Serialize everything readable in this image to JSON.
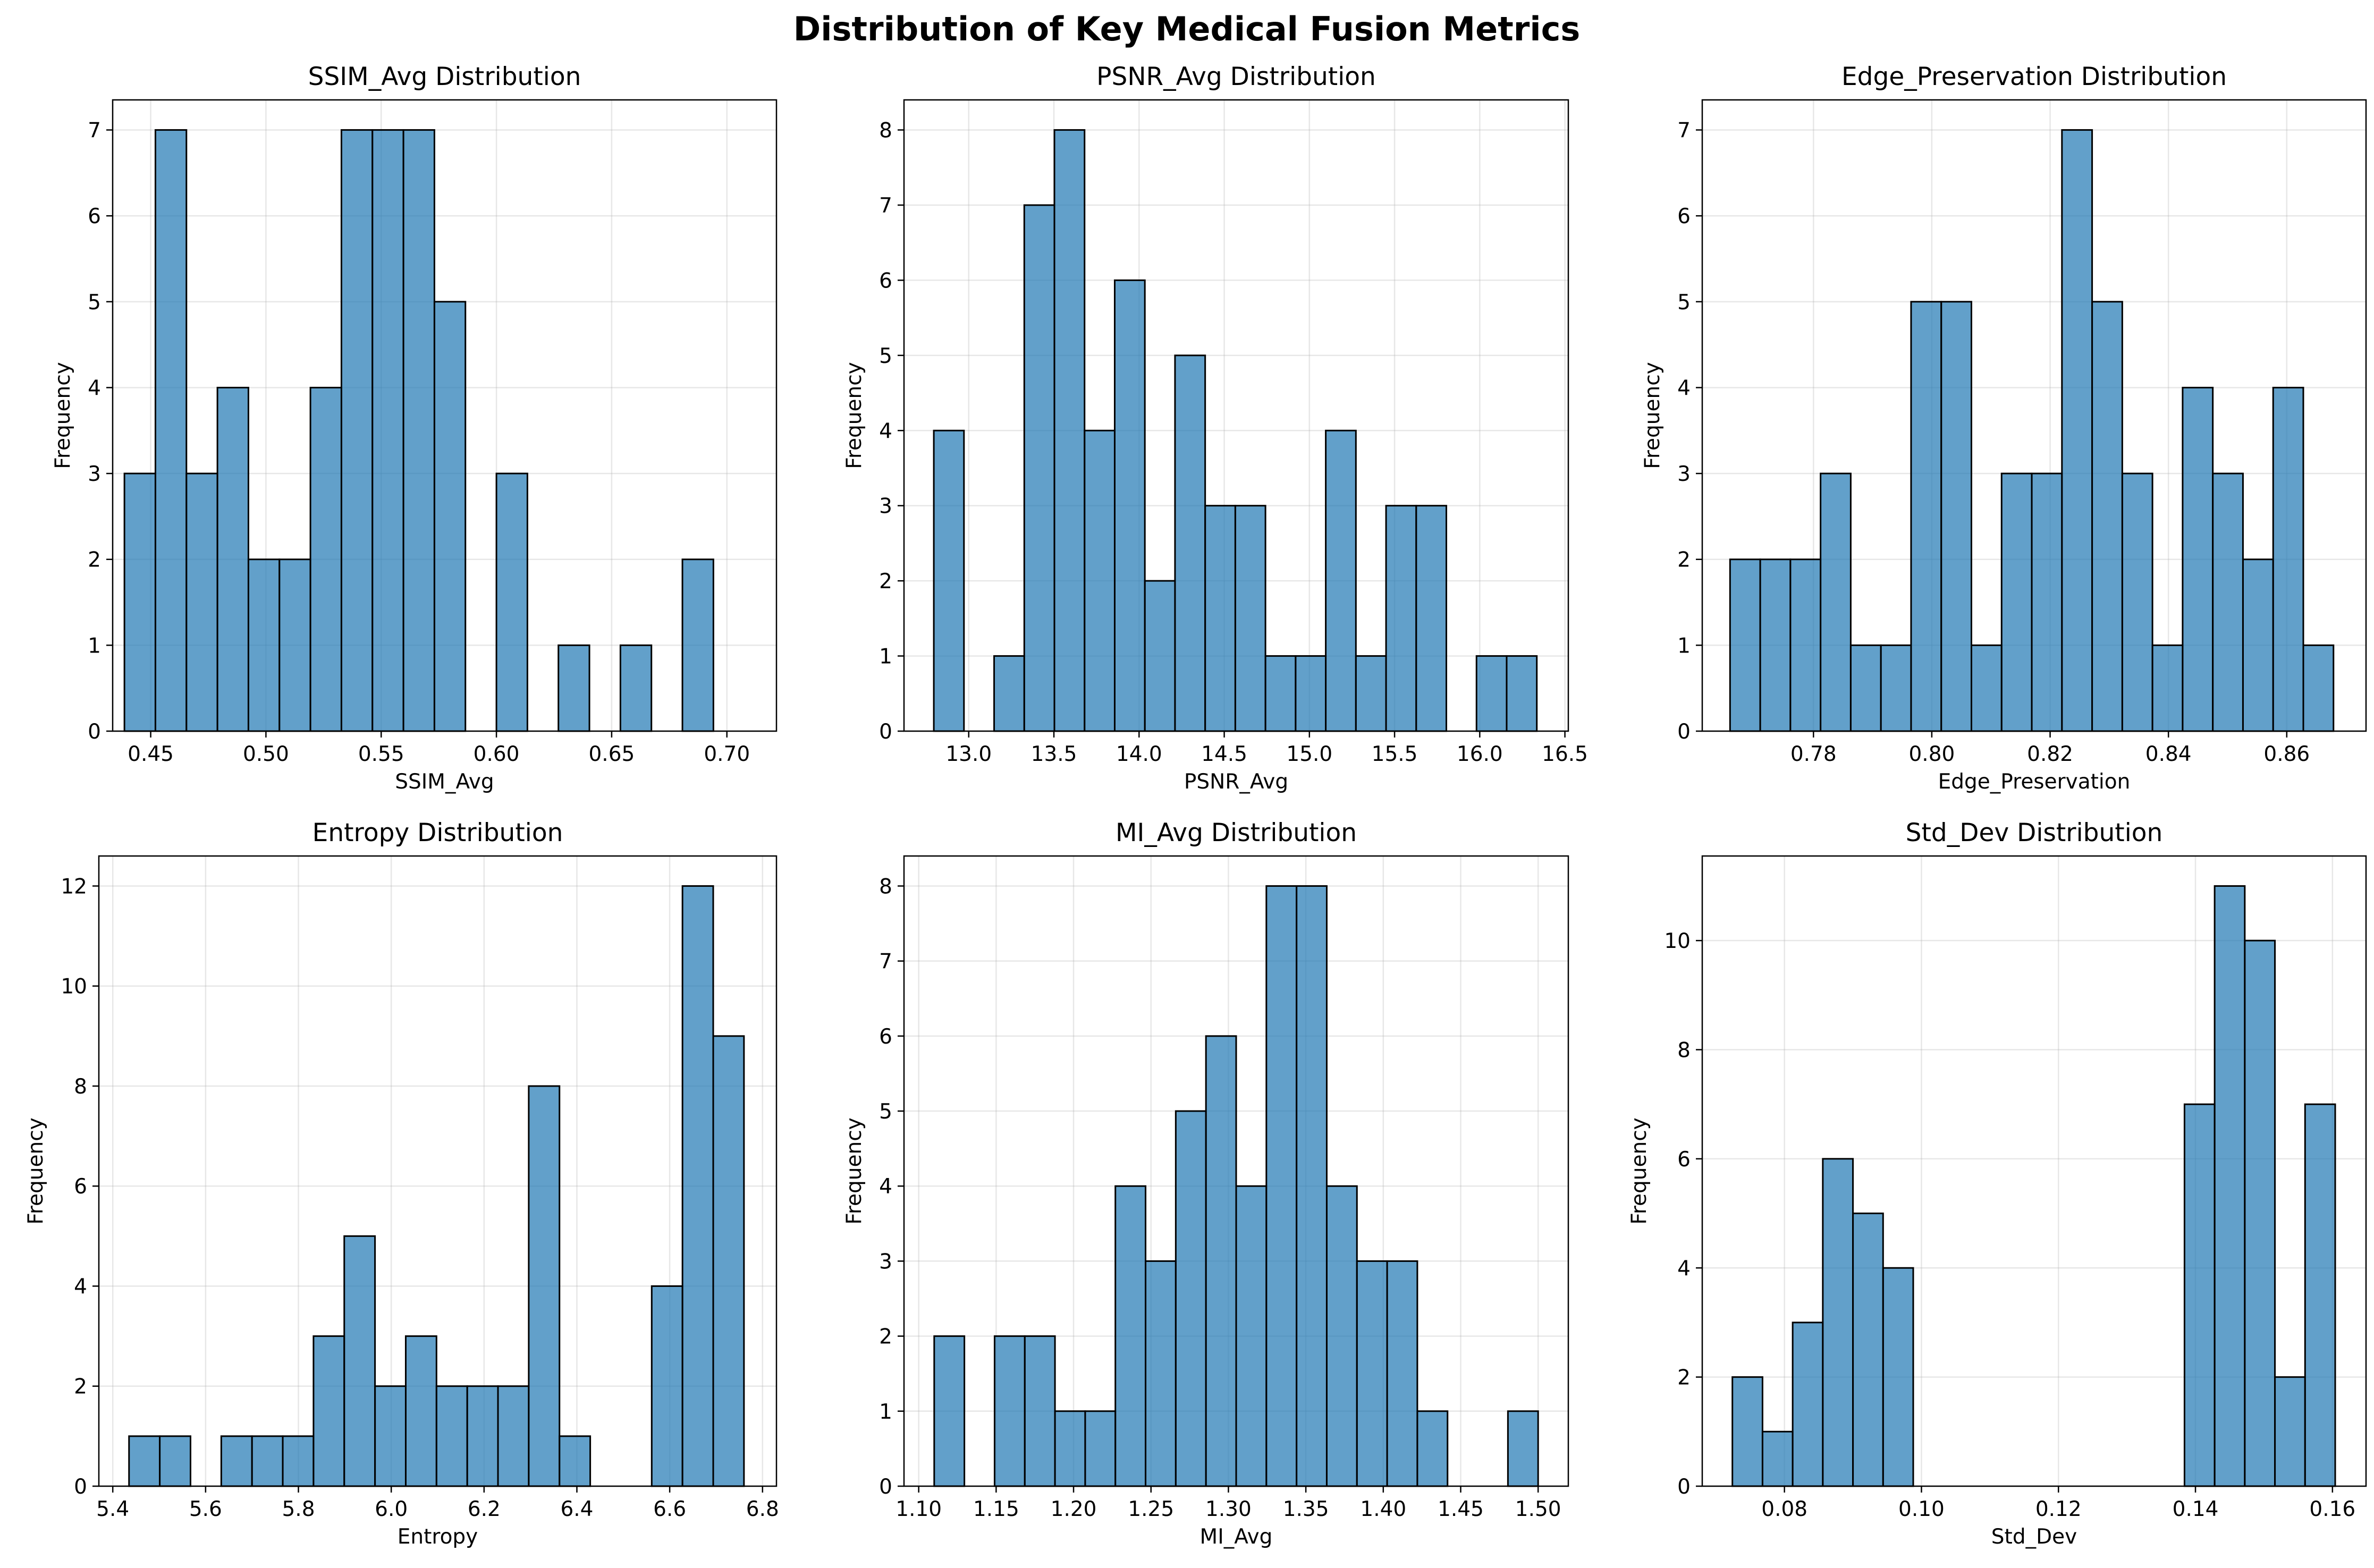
{
  "title": "Distribution of Key Medical Fusion Metrics",
  "chart_data": [
    {
      "type": "bar",
      "title": "SSIM_Avg Distribution",
      "xlabel": "SSIM_Avg",
      "ylabel": "Frequency",
      "xlim": [
        0.4335,
        0.7215
      ],
      "ylim": [
        0,
        7.35
      ],
      "xticks": [
        "0.45",
        "0.50",
        "0.55",
        "0.60",
        "0.65",
        "0.70"
      ],
      "yticks": [
        "0",
        "1",
        "2",
        "3",
        "4",
        "5",
        "6",
        "7"
      ],
      "bin_start": 0.4386,
      "bin_width": 0.01345,
      "counts": [
        3,
        7,
        3,
        4,
        2,
        2,
        4,
        7,
        7,
        7,
        5,
        0,
        3,
        0,
        1,
        0,
        1,
        0,
        2
      ],
      "grid": true,
      "bar_color": "#1f77b4"
    },
    {
      "type": "bar",
      "title": "PSNR_Avg Distribution",
      "xlabel": "PSNR_Avg",
      "ylabel": "Frequency",
      "xlim": [
        12.62,
        16.52
      ],
      "ylim": [
        0,
        8.4
      ],
      "xticks": [
        "13.0",
        "13.5",
        "14.0",
        "14.5",
        "15.0",
        "15.5",
        "16.0",
        "16.5"
      ],
      "yticks": [
        "0",
        "1",
        "2",
        "3",
        "4",
        "5",
        "6",
        "7",
        "8"
      ],
      "bin_start": 12.795,
      "bin_width": 0.177,
      "counts": [
        4,
        0,
        1,
        7,
        8,
        4,
        6,
        2,
        5,
        3,
        3,
        1,
        1,
        4,
        1,
        3,
        3,
        0,
        1,
        1
      ],
      "grid": true,
      "bar_color": "#1f77b4"
    },
    {
      "type": "bar",
      "title": "Edge_Preservation Distribution",
      "xlabel": "Edge_Preservation",
      "ylabel": "Frequency",
      "xlim": [
        0.7612,
        0.8734
      ],
      "ylim": [
        0,
        7.35
      ],
      "xticks": [
        "0.78",
        "0.80",
        "0.82",
        "0.84",
        "0.86"
      ],
      "yticks": [
        "0",
        "1",
        "2",
        "3",
        "4",
        "5",
        "6",
        "7"
      ],
      "bin_start": 0.7659,
      "bin_width": 0.0051,
      "counts": [
        2,
        2,
        2,
        3,
        1,
        1,
        5,
        5,
        1,
        3,
        3,
        7,
        5,
        3,
        1,
        4,
        3,
        2,
        4,
        1
      ],
      "grid": true,
      "bar_color": "#1f77b4"
    },
    {
      "type": "bar",
      "title": "Entropy Distribution",
      "xlabel": "Entropy",
      "ylabel": "Frequency",
      "xlim": [
        5.37,
        6.83
      ],
      "ylim": [
        0,
        12.6
      ],
      "xticks": [
        "5.4",
        "5.6",
        "5.8",
        "6.0",
        "6.2",
        "6.4",
        "6.6",
        "6.8"
      ],
      "yticks": [
        "0",
        "2",
        "4",
        "6",
        "8",
        "10",
        "12"
      ],
      "bin_start": 5.435,
      "bin_width": 0.06625,
      "counts": [
        1,
        1,
        0,
        1,
        1,
        1,
        3,
        5,
        2,
        3,
        2,
        2,
        2,
        8,
        1,
        0,
        0,
        4,
        12,
        9
      ],
      "grid": true,
      "bar_color": "#1f77b4"
    },
    {
      "type": "bar",
      "title": "MI_Avg Distribution",
      "xlabel": "MI_Avg",
      "ylabel": "Frequency",
      "xlim": [
        1.0905,
        1.5195
      ],
      "ylim": [
        0,
        8.4
      ],
      "xticks": [
        "1.10",
        "1.15",
        "1.20",
        "1.25",
        "1.30",
        "1.35",
        "1.40",
        "1.45",
        "1.50"
      ],
      "yticks": [
        "0",
        "1",
        "2",
        "3",
        "4",
        "5",
        "6",
        "7",
        "8"
      ],
      "bin_start": 1.11,
      "bin_width": 0.0195,
      "counts": [
        2,
        0,
        2,
        2,
        1,
        1,
        4,
        3,
        5,
        6,
        4,
        8,
        8,
        4,
        3,
        3,
        1,
        0,
        0,
        1
      ],
      "grid": true,
      "bar_color": "#1f77b4"
    },
    {
      "type": "bar",
      "title": "Std_Dev Distribution",
      "xlabel": "Std_Dev",
      "ylabel": "Frequency",
      "xlim": [
        0.068,
        0.1649
      ],
      "ylim": [
        0,
        11.55
      ],
      "xticks": [
        "0.08",
        "0.10",
        "0.12",
        "0.14",
        "0.16"
      ],
      "yticks": [
        "0",
        "2",
        "4",
        "6",
        "8",
        "10"
      ],
      "bin_start": 0.0724,
      "bin_width": 0.0044,
      "counts": [
        2,
        1,
        3,
        6,
        5,
        4,
        0,
        0,
        0,
        0,
        0,
        0,
        0,
        0,
        0,
        7,
        11,
        10,
        2,
        7
      ],
      "grid": true,
      "bar_color": "#1f77b4"
    }
  ]
}
